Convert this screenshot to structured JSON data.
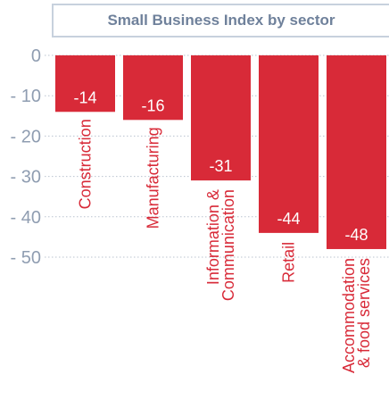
{
  "chart_data": {
    "type": "bar",
    "title": "Small Business Index by sector",
    "categories": [
      "Construction",
      "Manufacturing",
      "Information & Communication",
      "Retail",
      "Accommodation & food services"
    ],
    "category_lines": [
      [
        "Construction"
      ],
      [
        "Manufacturing"
      ],
      [
        "Information &",
        "Communication"
      ],
      [
        "Retail"
      ],
      [
        "Accommodation",
        "& food services"
      ]
    ],
    "values": [
      -14,
      -16,
      -31,
      -44,
      -48
    ],
    "value_labels": [
      "-14",
      "-16",
      "-31",
      "-44",
      "-48"
    ],
    "yticks": [
      "0",
      "- 10",
      "- 20",
      "- 30",
      "- 40",
      "- 50"
    ],
    "ylim": [
      -50,
      0
    ],
    "grid": true,
    "xlabel": "",
    "ylabel": "",
    "bar_color": "#d82a38",
    "label_color": "#ffffff",
    "tick_color": "#8f9db1",
    "grid_color": "#b9c3cf"
  }
}
